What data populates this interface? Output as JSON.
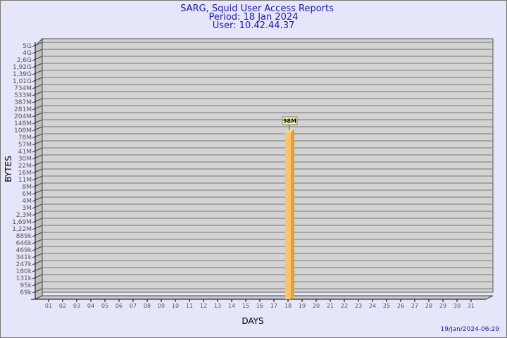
{
  "chart_data": {
    "type": "bar",
    "title": [
      "SARG, Squid User Access Reports",
      "Period: 18 Jan 2024",
      "User: 10.42.44.37"
    ],
    "xlabel": "DAYS",
    "ylabel": "BYTES",
    "yscale": "log",
    "yticks": [
      "5G",
      "4G",
      "2,6G",
      "1,92G",
      "1,39G",
      "1,01G",
      "734M",
      "533M",
      "387M",
      "281M",
      "204M",
      "148M",
      "108M",
      "78M",
      "57M",
      "41M",
      "30M",
      "22M",
      "16M",
      "11M",
      "8M",
      "6M",
      "4M",
      "3M",
      "2,3M",
      "1,69M",
      "1,22M",
      "889k",
      "646k",
      "469k",
      "341k",
      "247k",
      "180k",
      "131k",
      "95k",
      "69k"
    ],
    "ylim": [
      69000,
      5000000000
    ],
    "categories": [
      "01",
      "02",
      "03",
      "04",
      "05",
      "06",
      "07",
      "08",
      "09",
      "10",
      "11",
      "12",
      "13",
      "14",
      "15",
      "16",
      "17",
      "18",
      "19",
      "20",
      "21",
      "22",
      "23",
      "24",
      "25",
      "26",
      "27",
      "28",
      "29",
      "30",
      "31"
    ],
    "bars": [
      {
        "day": "18",
        "value": 98000000,
        "label": "98M"
      }
    ],
    "grid": true,
    "bar_color": "#ffc266",
    "background": "#e6e6fa",
    "plot_color": "#d3d3d3"
  },
  "footer": {
    "timestamp": "19/Jan/2024-06:29"
  }
}
